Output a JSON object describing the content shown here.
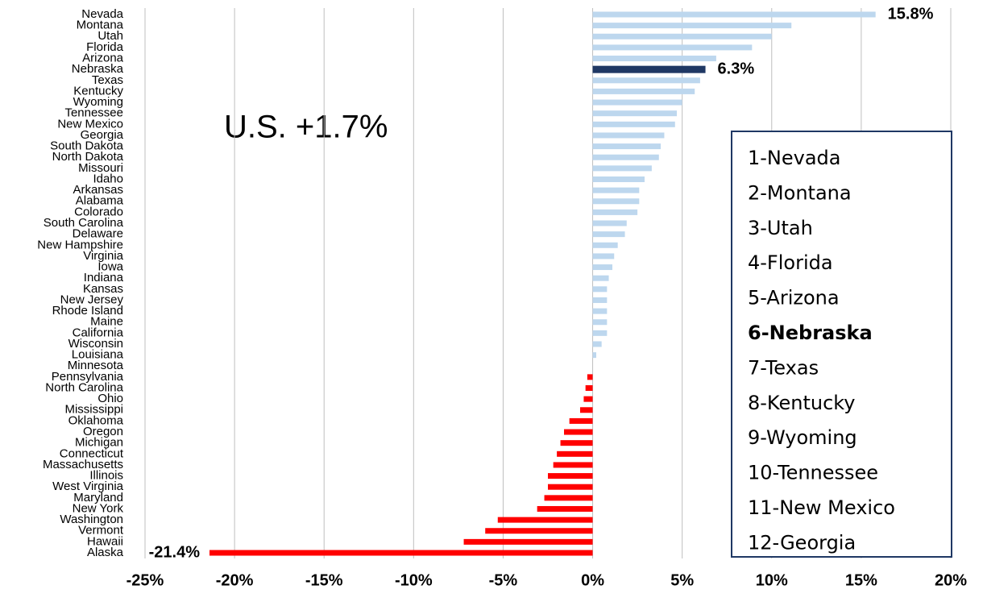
{
  "chart_data": {
    "type": "hbar",
    "categories": [
      "Nevada",
      "Montana",
      "Utah",
      "Florida",
      "Arizona",
      "Nebraska",
      "Texas",
      "Kentucky",
      "Wyoming",
      "Tennessee",
      "New Mexico",
      "Georgia",
      "South Dakota",
      "North Dakota",
      "Missouri",
      "Idaho",
      "Arkansas",
      "Alabama",
      "Colorado",
      "South Carolina",
      "Delaware",
      "New Hampshire",
      "Virginia",
      "Iowa",
      "Indiana",
      "Kansas",
      "New Jersey",
      "Rhode Island",
      "Maine",
      "California",
      "Wisconsin",
      "Louisiana",
      "Minnesota",
      "Pennsylvania",
      "North Carolina",
      "Ohio",
      "Mississippi",
      "Oklahoma",
      "Oregon",
      "Michigan",
      "Connecticut",
      "Massachusetts",
      "Illinois",
      "West Virginia",
      "Maryland",
      "New York",
      "Washington",
      "Vermont",
      "Hawaii",
      "Alaska"
    ],
    "values": [
      15.8,
      11.1,
      10.0,
      8.9,
      6.9,
      6.3,
      6.0,
      5.7,
      5.0,
      4.7,
      4.6,
      4.0,
      3.8,
      3.7,
      3.3,
      2.9,
      2.6,
      2.6,
      2.5,
      1.9,
      1.8,
      1.4,
      1.2,
      1.1,
      0.9,
      0.8,
      0.8,
      0.8,
      0.8,
      0.8,
      0.5,
      0.2,
      0.0,
      -0.3,
      -0.4,
      -0.5,
      -0.7,
      -1.3,
      -1.6,
      -1.8,
      -2.0,
      -2.2,
      -2.5,
      -2.5,
      -2.7,
      -3.1,
      -5.3,
      -6.0,
      -7.2,
      -21.4
    ],
    "value_labels": [
      "15.8%",
      null,
      null,
      null,
      null,
      "6.3%",
      null,
      null,
      null,
      null,
      null,
      null,
      null,
      null,
      null,
      null,
      null,
      null,
      null,
      null,
      null,
      null,
      null,
      null,
      null,
      null,
      null,
      null,
      null,
      null,
      null,
      null,
      null,
      null,
      null,
      null,
      null,
      null,
      null,
      null,
      null,
      null,
      null,
      null,
      null,
      null,
      null,
      null,
      null,
      "-21.4%"
    ],
    "colors": {
      "positive": "#bdd7ee",
      "negative": "#ff0000",
      "highlight": "#1f3864"
    },
    "highlight": "Nebraska",
    "xlim": [
      -25,
      20
    ],
    "xticks": [
      {
        "value": -25,
        "label": "-25%"
      },
      {
        "value": -20,
        "label": "-20%"
      },
      {
        "value": -15,
        "label": "-15%"
      },
      {
        "value": -10,
        "label": "-10%"
      },
      {
        "value": -5,
        "label": "-5%"
      },
      {
        "value": 0,
        "label": "0%"
      },
      {
        "value": 5,
        "label": "5%"
      },
      {
        "value": 10,
        "label": "10%"
      },
      {
        "value": 15,
        "label": "15%"
      },
      {
        "value": 20,
        "label": "20%"
      }
    ],
    "grid": true,
    "annotation": "U.S. +1.7%",
    "ranking": [
      {
        "text": "1-Nevada",
        "bold": false
      },
      {
        "text": "2-Montana",
        "bold": false
      },
      {
        "text": "3-Utah",
        "bold": false
      },
      {
        "text": "4-Florida",
        "bold": false
      },
      {
        "text": "5-Arizona",
        "bold": false
      },
      {
        "text": "6-Nebraska",
        "bold": true
      },
      {
        "text": "7-Texas",
        "bold": false
      },
      {
        "text": "8-Kentucky",
        "bold": false
      },
      {
        "text": "9-Wyoming",
        "bold": false
      },
      {
        "text": "10-Tennessee",
        "bold": false
      },
      {
        "text": "11-New Mexico",
        "bold": false
      },
      {
        "text": "12-Georgia",
        "bold": false
      }
    ]
  }
}
